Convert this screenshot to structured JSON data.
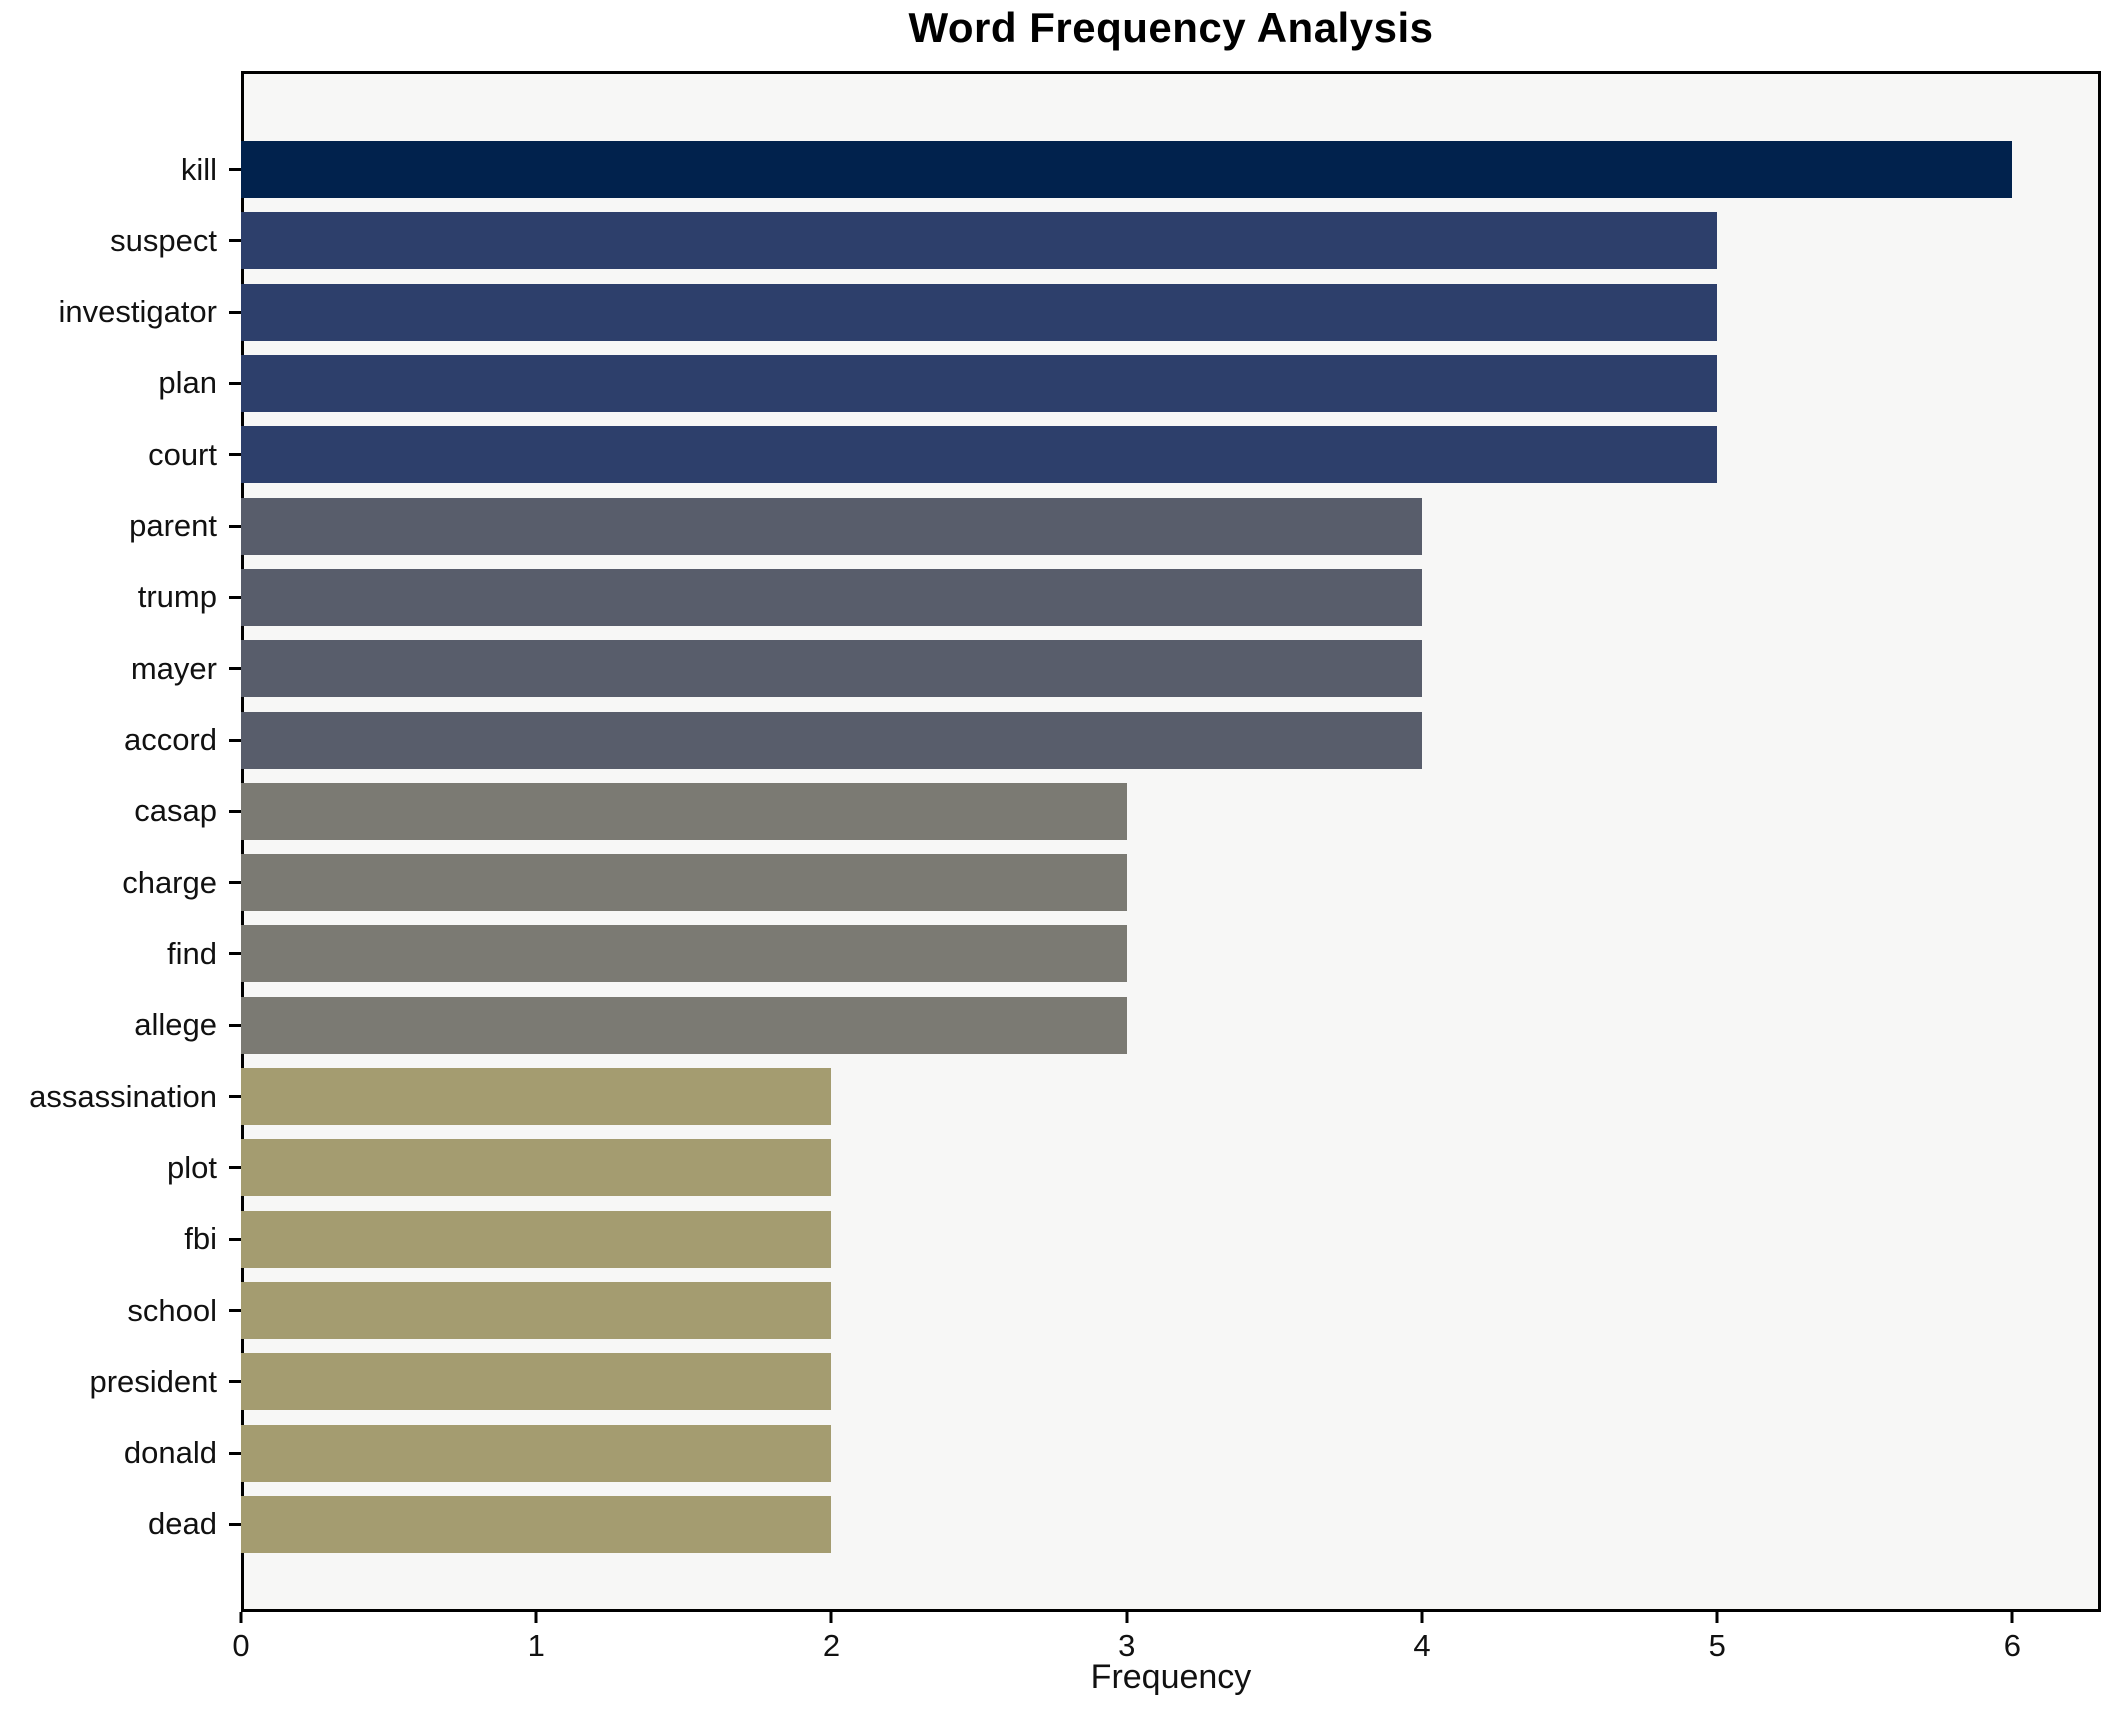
{
  "title": "Word Frequency Analysis",
  "chart_data": {
    "type": "bar",
    "orientation": "horizontal",
    "title": "Word Frequency Analysis",
    "xlabel": "Frequency",
    "ylabel": "",
    "categories": [
      "kill",
      "suspect",
      "investigator",
      "plan",
      "court",
      "parent",
      "trump",
      "mayer",
      "accord",
      "casap",
      "charge",
      "find",
      "allege",
      "assassination",
      "plot",
      "fbi",
      "school",
      "president",
      "donald",
      "dead"
    ],
    "values": [
      6,
      5,
      5,
      5,
      5,
      4,
      4,
      4,
      4,
      3,
      3,
      3,
      3,
      2,
      2,
      2,
      2,
      2,
      2,
      2
    ],
    "xlim": [
      0,
      6.3
    ],
    "xticks": [
      0,
      1,
      2,
      3,
      4,
      5,
      6
    ],
    "grid": false,
    "legend_position": "none",
    "value_colors": {
      "6": "#01224d",
      "5": "#2d3f6b",
      "4": "#585d6b",
      "3": "#7b7a73",
      "2": "#a49c70"
    },
    "plot_background": "#f7f7f6",
    "figure_background": "#ffffff",
    "bar_height_fraction": 0.8
  }
}
